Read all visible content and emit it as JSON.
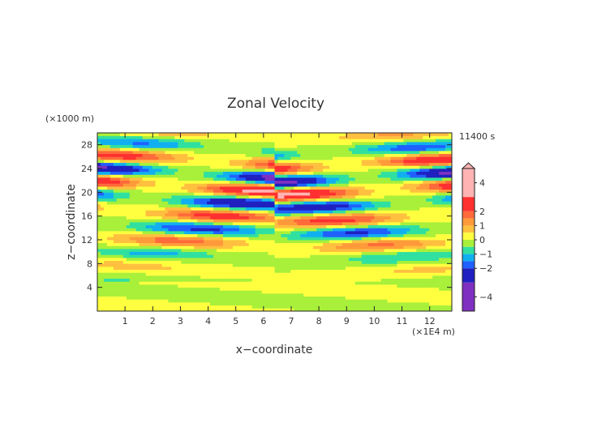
{
  "chart_data": {
    "type": "heatmap",
    "title": "Zonal Velocity",
    "xlabel": "x−coordinate",
    "ylabel": "z−coordinate",
    "x_unit": "(×1E4 m)",
    "y_unit": "(×1000 m)",
    "time_label": "11400 s",
    "xlim": [
      0,
      12.8
    ],
    "ylim": [
      0,
      30
    ],
    "x_ticks": [
      1,
      2,
      3,
      4,
      5,
      6,
      7,
      8,
      9,
      10,
      11,
      12
    ],
    "y_ticks": [
      4,
      8,
      12,
      16,
      20,
      24,
      28
    ],
    "colorbar": {
      "range": [
        -5,
        5
      ],
      "tick_labels": [
        "4",
        "2",
        "1",
        "0",
        "−1",
        "−2",
        "−4"
      ],
      "tick_values": [
        4,
        2,
        1,
        0,
        -1,
        -2,
        -4
      ],
      "levels": [
        {
          "lo": 3.0,
          "hi": 5.0,
          "color": "#ffb3b3"
        },
        {
          "lo": 2.0,
          "hi": 3.0,
          "color": "#ff3030"
        },
        {
          "lo": 1.5,
          "hi": 2.0,
          "color": "#ff6a3a"
        },
        {
          "lo": 1.0,
          "hi": 1.5,
          "color": "#ff9a3a"
        },
        {
          "lo": 0.5,
          "hi": 1.0,
          "color": "#ffc040"
        },
        {
          "lo": 0.0,
          "hi": 0.5,
          "color": "#ffff40"
        },
        {
          "lo": -0.5,
          "hi": 0.0,
          "color": "#a8f03a"
        },
        {
          "lo": -1.0,
          "hi": -0.5,
          "color": "#30e0a0"
        },
        {
          "lo": -1.5,
          "hi": -1.0,
          "color": "#10b0f0"
        },
        {
          "lo": -2.0,
          "hi": -1.5,
          "color": "#2060ff"
        },
        {
          "lo": -3.0,
          "hi": -2.0,
          "color": "#2020c0"
        },
        {
          "lo": -5.0,
          "hi": -3.0,
          "color": "#8030c0"
        }
      ]
    }
  }
}
